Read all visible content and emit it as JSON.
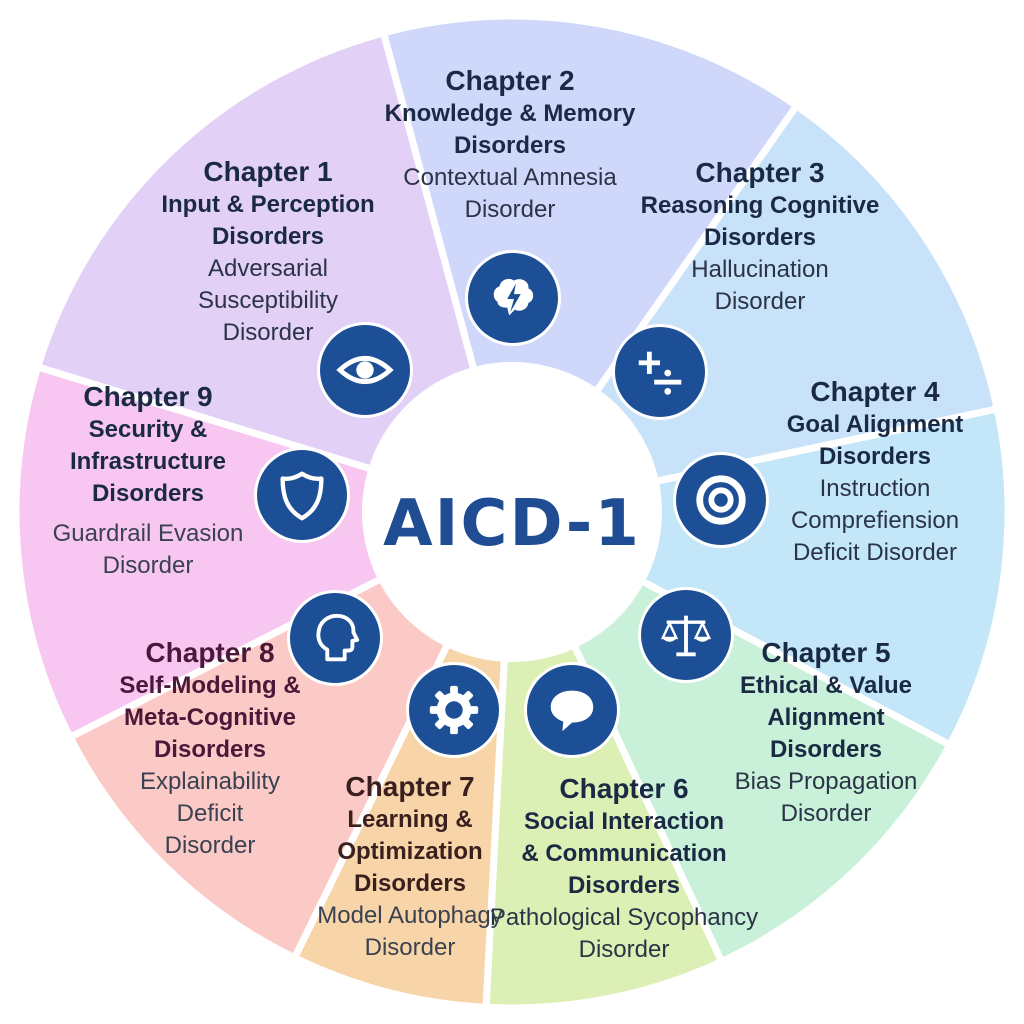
{
  "center": {
    "title": "AICD-1"
  },
  "colors": {
    "icon_fill": "#1d4f96",
    "center_text": "#1f4c93",
    "ch1": "#cfd8fa",
    "ch2": "#c8e2f9",
    "ch3": "#c3e6f8",
    "ch4": "#c9f0d8",
    "ch5": "#dcefb4",
    "ch6": "#f8d5a8",
    "ch7": "#fbc9c6",
    "ch8": "#f8c7f1",
    "ch9": "#e3d0f7"
  },
  "chapters": [
    {
      "chapter": "Chapter 1",
      "category": "Input & Perception Disorders",
      "disorder": "Adversarial Susceptibility Disorder",
      "icon": "eye-icon"
    },
    {
      "chapter": "Chapter 2",
      "category": "Knowledge & Memory Disorders",
      "disorder": "Contextual Amnesia Disorder",
      "icon": "brain-lightning-icon"
    },
    {
      "chapter": "Chapter 3",
      "category": "Reasoning Cognitive Disorders",
      "disorder": "Hallucination Disorder",
      "icon": "math-symbols-icon"
    },
    {
      "chapter": "Chapter 4",
      "category": "Goal Alignment Disorders",
      "disorder": "Instruction Comprefiension Deficit Disorder",
      "icon": "target-icon"
    },
    {
      "chapter": "Chapter 5",
      "category": "Ethical & Value Alignment Disorders",
      "disorder": "Bias Propagation Disorder",
      "icon": "scales-icon"
    },
    {
      "chapter": "Chapter 6",
      "category": "Social Interaction & Communication Disorders",
      "disorder": "Pathological Sycophancy Disorder",
      "icon": "speech-bubble-icon"
    },
    {
      "chapter": "Chapter 7",
      "category": "Learning & Optimization Disorders",
      "disorder": "Model Autophagy Disorder",
      "icon": "gear-icon"
    },
    {
      "chapter": "Chapter 8",
      "category": "Self-Modeling & Meta-Cognitive Disorders",
      "disorder": "Explainability Deficit Disorder",
      "icon": "head-profile-icon"
    },
    {
      "chapter": "Chapter 9",
      "category": "Security & Infrastructure Disorders",
      "disorder": "Guardrail Evasion Disorder",
      "icon": "shield-icon"
    }
  ]
}
